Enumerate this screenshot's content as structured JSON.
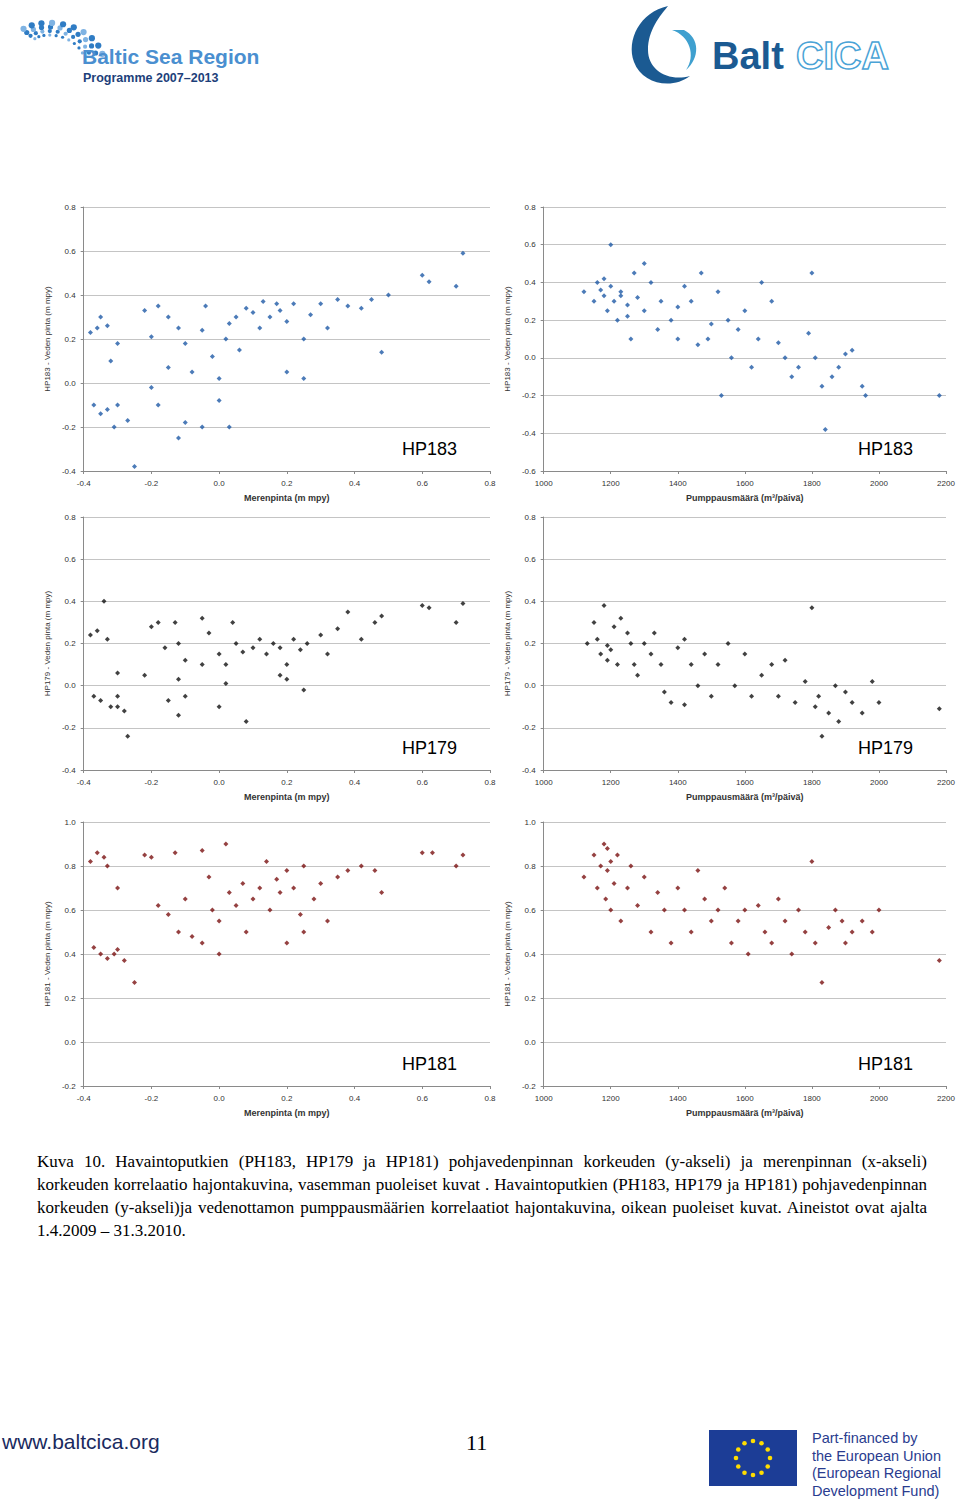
{
  "header": {
    "left_logo": [
      "Baltic Sea Region",
      "Programme 2007–2013"
    ],
    "right_logo": [
      "Balt",
      "CICA"
    ]
  },
  "chart_data": [
    {
      "type": "scatter",
      "annotation": "HP183",
      "y_label": "HP183 - Veden pinta (m mpy)",
      "x_label": "Merenpinta (m mpy)",
      "color": "#1f5aa6",
      "marker": "diamond",
      "grid": true,
      "xlim": [
        -0.4,
        0.8
      ],
      "xticks": [
        -0.4,
        -0.2,
        {
          "value": 0,
          "label": "0.0"
        },
        0.2,
        0.4,
        0.6,
        0.8
      ],
      "ylim": [
        -0.4,
        0.8
      ],
      "yticks": [
        -0.4,
        -0.2,
        {
          "value": 0,
          "label": "0.0"
        },
        0.2,
        0.4,
        0.6,
        0.8
      ],
      "x": [
        -0.38,
        -0.36,
        -0.35,
        -0.33,
        -0.32,
        -0.37,
        -0.33,
        -0.3,
        -0.31,
        -0.35,
        -0.27,
        -0.25,
        -0.3,
        -0.22,
        -0.2,
        -0.18,
        -0.15,
        -0.12,
        -0.1,
        -0.15,
        -0.2,
        -0.18,
        -0.1,
        -0.12,
        -0.08,
        -0.05,
        -0.04,
        -0.02,
        0,
        0,
        0.02,
        0.03,
        0.05,
        0.06,
        0.08,
        0.1,
        0.12,
        0.13,
        0.15,
        0.17,
        0.18,
        0.2,
        0.22,
        0.25,
        0.27,
        0.3,
        0.32,
        0.35,
        0.38,
        0.42,
        0.45,
        0.5,
        0.6,
        0.62,
        0.72,
        0.7,
        0.48,
        0.2,
        0.25,
        -0.05,
        0.03
      ],
      "values": [
        0.23,
        0.25,
        0.3,
        0.26,
        0.1,
        -0.1,
        -0.12,
        -0.1,
        -0.2,
        -0.14,
        -0.17,
        -0.38,
        0.18,
        0.33,
        0.21,
        0.35,
        0.3,
        0.25,
        0.18,
        0.07,
        -0.02,
        -0.1,
        -0.18,
        -0.25,
        0.05,
        0.24,
        0.35,
        0.12,
        -0.08,
        0.02,
        0.2,
        0.27,
        0.3,
        0.15,
        0.34,
        0.32,
        0.25,
        0.37,
        0.3,
        0.36,
        0.33,
        0.28,
        0.36,
        0.2,
        0.31,
        0.36,
        0.25,
        0.38,
        0.35,
        0.34,
        0.38,
        0.4,
        0.49,
        0.46,
        0.59,
        0.44,
        0.14,
        0.05,
        0.02,
        -0.2,
        -0.2
      ]
    },
    {
      "type": "scatter",
      "annotation": "HP183",
      "y_label": "HP183 - Veden pinta (m mpy)",
      "x_label": "Pumppausmäärä (m³/päivä)",
      "color": "#1f5aa6",
      "marker": "diamond",
      "grid": true,
      "xlim": [
        1000,
        2200
      ],
      "xticks": [
        1000,
        1200,
        1400,
        1600,
        1800,
        2000,
        2200
      ],
      "ylim": [
        -0.6,
        0.8
      ],
      "yticks": [
        -0.6,
        -0.4,
        -0.2,
        {
          "value": 0,
          "label": "0.0"
        },
        0.2,
        0.4,
        0.6,
        0.8
      ],
      "x": [
        1120,
        1150,
        1160,
        1170,
        1180,
        1190,
        1200,
        1200,
        1210,
        1220,
        1180,
        1230,
        1250,
        1270,
        1280,
        1300,
        1300,
        1320,
        1340,
        1350,
        1380,
        1400,
        1420,
        1440,
        1460,
        1470,
        1490,
        1500,
        1520,
        1550,
        1560,
        1580,
        1600,
        1620,
        1640,
        1650,
        1680,
        1700,
        1720,
        1740,
        1760,
        1790,
        1800,
        1810,
        1830,
        1840,
        1860,
        1880,
        1900,
        1920,
        1950,
        1960,
        2180,
        1230,
        1250,
        1260,
        1400,
        1530
      ],
      "values": [
        0.35,
        0.3,
        0.4,
        0.36,
        0.33,
        0.25,
        0.38,
        0.6,
        0.3,
        0.2,
        0.42,
        0.35,
        0.28,
        0.45,
        0.32,
        0.25,
        0.5,
        0.4,
        0.15,
        0.3,
        0.2,
        0.27,
        0.38,
        0.3,
        0.07,
        0.45,
        0.1,
        0.18,
        0.35,
        0.2,
        0.0,
        0.15,
        0.25,
        -0.05,
        0.1,
        0.4,
        0.3,
        0.08,
        0.0,
        -0.1,
        -0.05,
        0.13,
        0.45,
        0.0,
        -0.15,
        -0.38,
        -0.1,
        -0.05,
        0.02,
        0.04,
        -0.15,
        -0.2,
        -0.2,
        0.33,
        0.22,
        0.1,
        0.1,
        -0.2
      ]
    },
    {
      "type": "scatter",
      "annotation": "HP179",
      "y_label": "HP179 - Veden pinta (m mpy)",
      "x_label": "Merenpinta (m mpy)",
      "color": "#111111",
      "marker": "diamond",
      "grid": true,
      "xlim": [
        -0.4,
        0.8
      ],
      "xticks": [
        -0.4,
        -0.2,
        {
          "value": 0,
          "label": "0.0"
        },
        0.2,
        0.4,
        0.6,
        0.8
      ],
      "ylim": [
        -0.4,
        0.8
      ],
      "yticks": [
        -0.4,
        -0.2,
        {
          "value": 0,
          "label": "0.0"
        },
        0.2,
        0.4,
        0.6,
        0.8
      ],
      "x": [
        -0.38,
        -0.36,
        -0.34,
        -0.33,
        -0.37,
        -0.35,
        -0.32,
        -0.3,
        -0.3,
        -0.28,
        -0.27,
        -0.3,
        -0.22,
        -0.2,
        -0.18,
        -0.16,
        -0.13,
        -0.12,
        -0.1,
        -0.12,
        -0.15,
        -0.12,
        -0.1,
        -0.05,
        -0.03,
        0,
        0,
        0.02,
        0.04,
        0.05,
        0.07,
        0.08,
        0.1,
        0.12,
        0.14,
        0.16,
        0.18,
        0.2,
        0.22,
        0.24,
        0.26,
        0.3,
        0.32,
        0.35,
        0.38,
        0.42,
        0.46,
        0.48,
        0.6,
        0.62,
        0.72,
        0.7,
        0.2,
        0.18,
        0.25,
        0.02,
        -0.05
      ],
      "values": [
        0.24,
        0.26,
        0.4,
        0.22,
        -0.05,
        -0.07,
        -0.1,
        -0.05,
        -0.1,
        -0.12,
        -0.24,
        0.06,
        0.05,
        0.28,
        0.3,
        0.18,
        0.3,
        0.2,
        0.12,
        0.03,
        -0.07,
        -0.14,
        -0.05,
        0.32,
        0.25,
        0.15,
        -0.1,
        0.1,
        0.3,
        0.2,
        0.16,
        -0.17,
        0.18,
        0.22,
        0.15,
        0.2,
        0.18,
        0.1,
        0.22,
        0.17,
        0.2,
        0.24,
        0.15,
        0.27,
        0.35,
        0.22,
        0.3,
        0.33,
        0.38,
        0.37,
        0.39,
        0.3,
        0.03,
        0.05,
        -0.02,
        0.01,
        0.1
      ]
    },
    {
      "type": "scatter",
      "annotation": "HP179",
      "y_label": "HP179 - Veden pinta (m mpy)",
      "x_label": "Pumppausmäärä (m³/päivä)",
      "color": "#111111",
      "marker": "diamond",
      "grid": true,
      "xlim": [
        1000,
        2200
      ],
      "xticks": [
        1000,
        1200,
        1400,
        1600,
        1800,
        2000,
        2200
      ],
      "ylim": [
        -0.4,
        0.8
      ],
      "yticks": [
        -0.4,
        -0.2,
        {
          "value": 0,
          "label": "0.0"
        },
        0.2,
        0.4,
        0.6,
        0.8
      ],
      "x": [
        1130,
        1150,
        1160,
        1170,
        1180,
        1190,
        1200,
        1210,
        1220,
        1230,
        1250,
        1270,
        1280,
        1300,
        1320,
        1330,
        1350,
        1360,
        1380,
        1400,
        1420,
        1440,
        1460,
        1480,
        1500,
        1520,
        1550,
        1570,
        1600,
        1620,
        1650,
        1680,
        1700,
        1720,
        1750,
        1780,
        1800,
        1810,
        1820,
        1830,
        1850,
        1870,
        1880,
        1900,
        1920,
        1950,
        1980,
        2000,
        2180,
        1190,
        1420,
        1260
      ],
      "values": [
        0.2,
        0.3,
        0.22,
        0.15,
        0.38,
        0.19,
        0.17,
        0.28,
        0.1,
        0.32,
        0.25,
        0.1,
        0.05,
        0.2,
        0.15,
        0.25,
        0.1,
        -0.03,
        -0.08,
        0.18,
        0.22,
        0.1,
        0.0,
        0.15,
        -0.05,
        0.1,
        0.2,
        0.0,
        0.15,
        -0.05,
        0.05,
        0.1,
        -0.05,
        0.12,
        -0.08,
        0.02,
        0.37,
        -0.1,
        -0.05,
        -0.24,
        -0.13,
        0.0,
        -0.17,
        -0.03,
        -0.08,
        -0.13,
        0.02,
        -0.08,
        -0.11,
        0.12,
        -0.09,
        0.2
      ]
    },
    {
      "type": "scatter",
      "annotation": "HP181",
      "y_label": "HP181 - Veden pinta (m mpy)",
      "x_label": "Merenpinta (m mpy)",
      "color": "#7a1212",
      "marker": "diamond",
      "grid": true,
      "xlim": [
        -0.4,
        0.8
      ],
      "xticks": [
        -0.4,
        -0.2,
        {
          "value": 0,
          "label": "0.0"
        },
        0.2,
        0.4,
        0.6,
        0.8
      ],
      "ylim": [
        -0.2,
        1
      ],
      "yticks": [
        -0.2,
        {
          "value": 0,
          "label": "0.0"
        },
        0.2,
        0.4,
        0.6,
        0.8,
        {
          "value": 1,
          "label": "1.0"
        }
      ],
      "x": [
        -0.38,
        -0.36,
        -0.34,
        -0.33,
        -0.37,
        -0.35,
        -0.33,
        -0.31,
        -0.3,
        -0.28,
        -0.25,
        -0.3,
        -0.22,
        -0.2,
        -0.18,
        -0.15,
        -0.13,
        -0.12,
        -0.1,
        -0.08,
        -0.05,
        -0.03,
        -0.02,
        0,
        0,
        0.02,
        0.03,
        0.05,
        0.07,
        0.08,
        0.1,
        0.12,
        0.14,
        0.15,
        0.17,
        0.18,
        0.2,
        0.22,
        0.24,
        0.25,
        0.28,
        0.3,
        0.32,
        0.35,
        0.38,
        0.42,
        0.46,
        0.48,
        0.6,
        0.63,
        0.72,
        0.7,
        0.2,
        0.25,
        -0.05
      ],
      "values": [
        0.82,
        0.86,
        0.84,
        0.8,
        0.43,
        0.4,
        0.38,
        0.4,
        0.42,
        0.37,
        0.27,
        0.7,
        0.85,
        0.84,
        0.62,
        0.58,
        0.86,
        0.5,
        0.65,
        0.48,
        0.87,
        0.75,
        0.6,
        0.55,
        0.4,
        0.9,
        0.68,
        0.62,
        0.72,
        0.5,
        0.65,
        0.7,
        0.82,
        0.6,
        0.74,
        0.68,
        0.78,
        0.7,
        0.58,
        0.8,
        0.65,
        0.72,
        0.55,
        0.75,
        0.78,
        0.8,
        0.78,
        0.68,
        0.86,
        0.86,
        0.85,
        0.8,
        0.45,
        0.5,
        0.45
      ]
    },
    {
      "type": "scatter",
      "annotation": "HP181",
      "y_label": "HP181 - Veden pinta (m mpy)",
      "x_label": "Pumppausmäärä (m³/päivä)",
      "color": "#7a1212",
      "marker": "diamond",
      "grid": true,
      "xlim": [
        1000,
        2200
      ],
      "xticks": [
        1000,
        1200,
        1400,
        1600,
        1800,
        2000,
        2200
      ],
      "ylim": [
        -0.2,
        1
      ],
      "yticks": [
        -0.2,
        {
          "value": 0,
          "label": "0.0"
        },
        0.2,
        0.4,
        0.6,
        0.8,
        {
          "value": 1,
          "label": "1.0"
        }
      ],
      "x": [
        1120,
        1150,
        1160,
        1170,
        1180,
        1185,
        1190,
        1200,
        1210,
        1220,
        1230,
        1250,
        1260,
        1280,
        1300,
        1320,
        1340,
        1360,
        1380,
        1400,
        1420,
        1440,
        1460,
        1480,
        1500,
        1520,
        1540,
        1560,
        1580,
        1600,
        1610,
        1640,
        1660,
        1680,
        1700,
        1720,
        1740,
        1760,
        1780,
        1800,
        1810,
        1830,
        1850,
        1870,
        1890,
        1900,
        1920,
        1950,
        1980,
        2000,
        2180,
        1190,
        1200
      ],
      "values": [
        0.75,
        0.85,
        0.7,
        0.8,
        0.9,
        0.65,
        0.78,
        0.6,
        0.72,
        0.85,
        0.55,
        0.7,
        0.8,
        0.62,
        0.75,
        0.5,
        0.68,
        0.6,
        0.45,
        0.7,
        0.6,
        0.5,
        0.78,
        0.65,
        0.55,
        0.6,
        0.7,
        0.45,
        0.55,
        0.6,
        0.4,
        0.62,
        0.5,
        0.45,
        0.65,
        0.55,
        0.4,
        0.6,
        0.5,
        0.82,
        0.45,
        0.27,
        0.52,
        0.6,
        0.55,
        0.45,
        0.5,
        0.55,
        0.5,
        0.6,
        0.37,
        0.88,
        0.82
      ]
    }
  ],
  "caption": "Kuva 10. Havaintoputkien (PH183, HP179 ja HP181) pohjavedenpinnan korkeuden (y-akseli) ja merenpinnan (x-akseli) korkeuden korrelaatio hajontakuvina, vasemman puoleiset kuvat . Havaintoputkien (PH183, HP179 ja HP181) pohjavedenpinnan korkeuden (y-akseli)ja vedenottamon pumppausmäärien korrelaatiot hajontakuvina, oikean puoleiset kuvat. Aineistot ovat ajalta 1.4.2009 – 31.3.2010.",
  "footer": {
    "url": "www.baltcica.org",
    "page_number": "11",
    "funding": [
      "Part-financed by",
      "the European Union",
      "(European Regional",
      "Development Fund)"
    ]
  }
}
